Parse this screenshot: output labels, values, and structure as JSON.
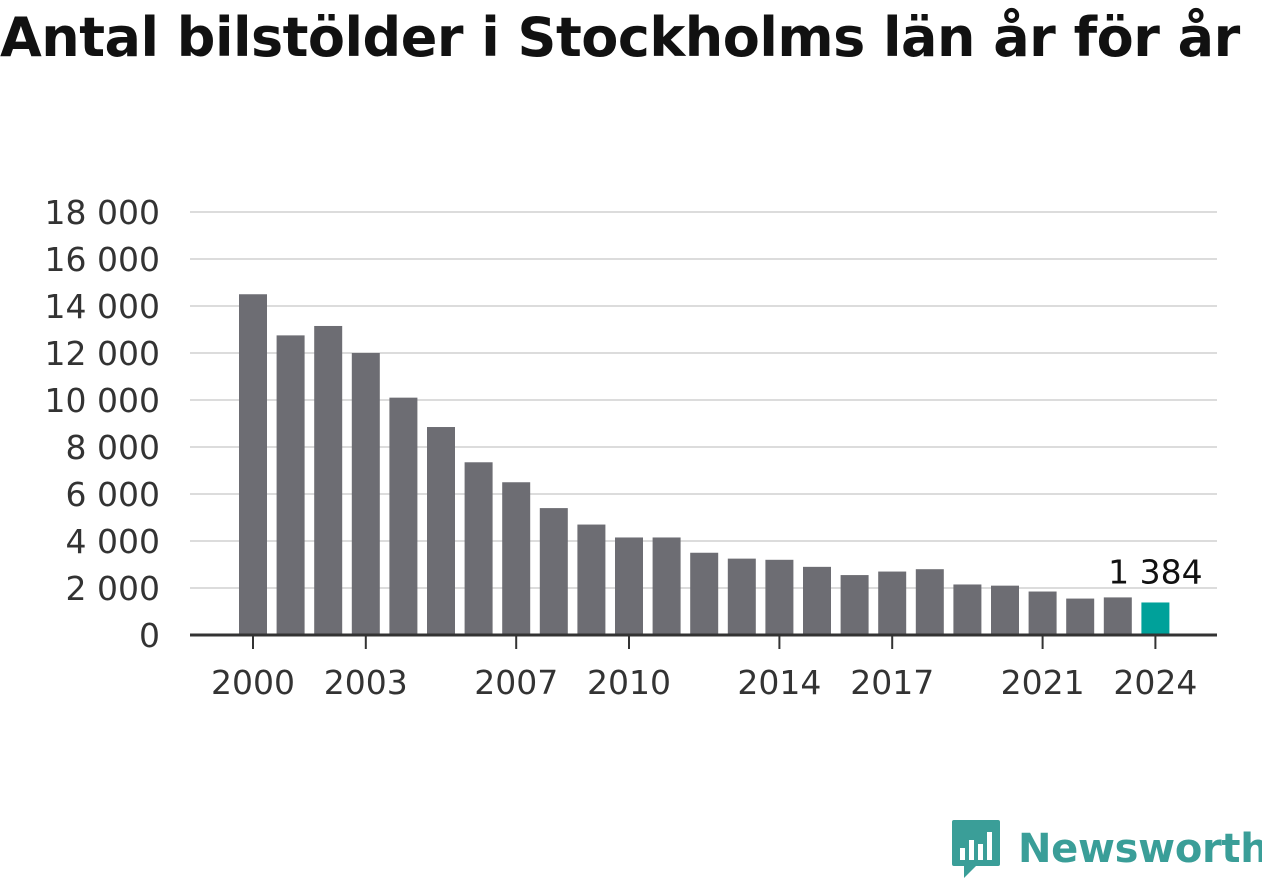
{
  "colors": {
    "bar": "#6d6d73",
    "highlight": "#00a19a",
    "grid": "#dcdcdc",
    "axis": "#333333",
    "text": "#333333",
    "brand": "#3a9e98"
  },
  "brand": {
    "name": "Newsworthy",
    "icon": "bar-chart-speech-bubble-icon"
  },
  "chart_data": {
    "type": "bar",
    "title": "Antal bilstölder i Stockholms län år för år",
    "xlabel": "",
    "ylabel": "",
    "ylim": [
      0,
      18000
    ],
    "yticks": [
      0,
      2000,
      4000,
      6000,
      8000,
      10000,
      12000,
      14000,
      16000,
      18000
    ],
    "ytick_labels": [
      "0",
      "2 000",
      "4 000",
      "6 000",
      "8 000",
      "10 000",
      "12 000",
      "14 000",
      "16 000",
      "18 000"
    ],
    "grid": true,
    "categories": [
      "2000",
      "2001",
      "2002",
      "2003",
      "2004",
      "2005",
      "2006",
      "2007",
      "2008",
      "2009",
      "2010",
      "2011",
      "2012",
      "2013",
      "2014",
      "2015",
      "2016",
      "2017",
      "2018",
      "2019",
      "2020",
      "2021",
      "2022",
      "2023",
      "2024"
    ],
    "xtick_labels": [
      "2000",
      "2003",
      "2007",
      "2010",
      "2014",
      "2017",
      "2021",
      "2024"
    ],
    "values": [
      14500,
      12750,
      13150,
      12000,
      10100,
      8850,
      7350,
      6500,
      5400,
      4700,
      4150,
      4150,
      3500,
      3250,
      3200,
      2900,
      2550,
      2700,
      2800,
      2150,
      2100,
      1850,
      1550,
      1600,
      1384
    ],
    "highlight_index": 24,
    "annotation": "1 384"
  }
}
